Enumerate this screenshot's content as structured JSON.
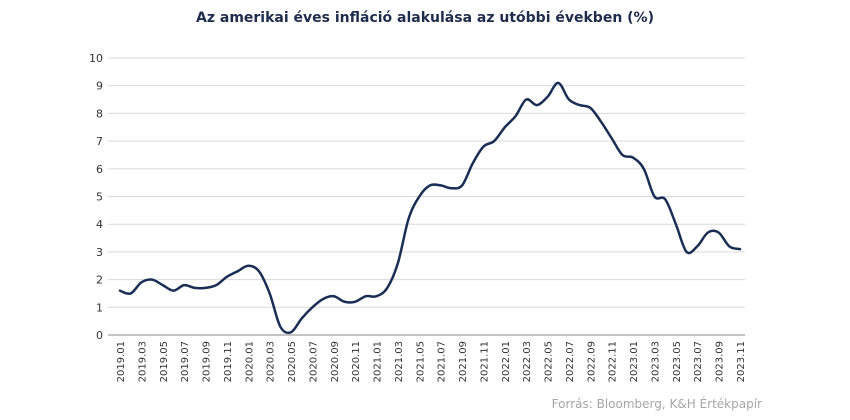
{
  "chart_data": {
    "type": "line",
    "title": "Az amerikai éves infláció alakulása az utóbbi években (%)",
    "source": "Forrás: Bloomberg, K&H Értékpapír",
    "xlabel": "",
    "ylabel": "",
    "ylim": [
      0,
      10
    ],
    "yticks": [
      0,
      1,
      2,
      3,
      4,
      5,
      6,
      7,
      8,
      9,
      10
    ],
    "grid": true,
    "line_color": "#1a2e55",
    "x_tick_labels": [
      "2019.01",
      "2019.03",
      "2019.05",
      "2019.07",
      "2019.09",
      "2019.11",
      "2020.01",
      "2020.03",
      "2020.05",
      "2020.07",
      "2020.09",
      "2020.11",
      "2021.01",
      "2021.03",
      "2021.05",
      "2021.07",
      "2021.09",
      "2021.11",
      "2022.01",
      "2022.03",
      "2022.05",
      "2022.07",
      "2022.09",
      "2022.11",
      "2023.01",
      "2023.03",
      "2023.05",
      "2023.07",
      "2023.09",
      "2023.11"
    ],
    "x": [
      "2019.01",
      "2019.02",
      "2019.03",
      "2019.04",
      "2019.05",
      "2019.06",
      "2019.07",
      "2019.08",
      "2019.09",
      "2019.10",
      "2019.11",
      "2019.12",
      "2020.01",
      "2020.02",
      "2020.03",
      "2020.04",
      "2020.05",
      "2020.06",
      "2020.07",
      "2020.08",
      "2020.09",
      "2020.10",
      "2020.11",
      "2020.12",
      "2021.01",
      "2021.02",
      "2021.03",
      "2021.04",
      "2021.05",
      "2021.06",
      "2021.07",
      "2021.08",
      "2021.09",
      "2021.10",
      "2021.11",
      "2021.12",
      "2022.01",
      "2022.02",
      "2022.03",
      "2022.04",
      "2022.05",
      "2022.06",
      "2022.07",
      "2022.08",
      "2022.09",
      "2022.10",
      "2022.11",
      "2022.12",
      "2023.01",
      "2023.02",
      "2023.03",
      "2023.04",
      "2023.05",
      "2023.06",
      "2023.07",
      "2023.08",
      "2023.09",
      "2023.10",
      "2023.11"
    ],
    "values": [
      1.6,
      1.5,
      1.9,
      2.0,
      1.8,
      1.6,
      1.8,
      1.7,
      1.7,
      1.8,
      2.1,
      2.3,
      2.5,
      2.3,
      1.5,
      0.3,
      0.1,
      0.6,
      1.0,
      1.3,
      1.4,
      1.2,
      1.2,
      1.4,
      1.4,
      1.7,
      2.6,
      4.2,
      5.0,
      5.4,
      5.4,
      5.3,
      5.4,
      6.2,
      6.8,
      7.0,
      7.5,
      7.9,
      8.5,
      8.3,
      8.6,
      9.1,
      8.5,
      8.3,
      8.2,
      7.7,
      7.1,
      6.5,
      6.4,
      6.0,
      5.0,
      4.9,
      4.0,
      3.0,
      3.2,
      3.7,
      3.7,
      3.2,
      3.1
    ]
  }
}
